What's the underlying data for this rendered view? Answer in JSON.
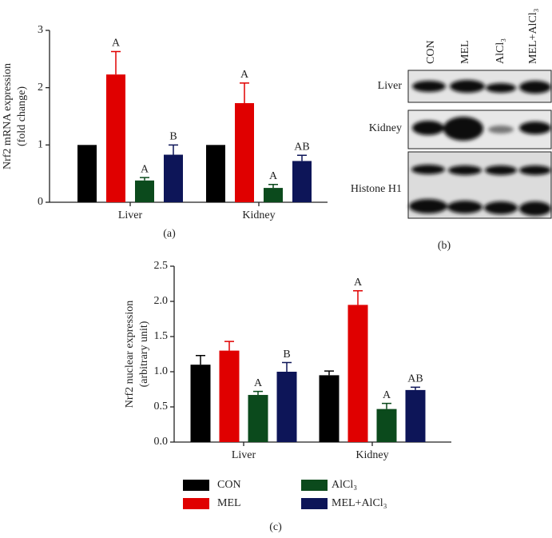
{
  "chart_data": [
    {
      "type": "bar",
      "caption": "(a)",
      "ylabel": [
        "Nrf2 mRNA expression",
        "(fold change)"
      ],
      "categories": [
        "Liver",
        "Kidney"
      ],
      "ylim": [
        0,
        3
      ],
      "yticks": [
        0,
        1,
        2,
        3
      ],
      "series": [
        {
          "color": "#000000",
          "values": [
            1,
            1
          ],
          "errors": [
            null,
            null
          ],
          "letters": [
            null,
            null
          ]
        },
        {
          "color": "#e00000",
          "values": [
            2.23,
            1.73
          ],
          "errors": [
            0.4,
            0.35
          ],
          "letters": [
            "A",
            "A"
          ]
        },
        {
          "color": "#0b4a1c",
          "values": [
            0.38,
            0.25
          ],
          "errors": [
            0.05,
            0.06
          ],
          "letters": [
            "A",
            "A"
          ]
        },
        {
          "color": "#0d1558",
          "values": [
            0.83,
            0.72
          ],
          "errors": [
            0.17,
            0.1
          ],
          "letters": [
            "B",
            "AB"
          ]
        }
      ]
    },
    {
      "type": "bar",
      "caption": "(c)",
      "ylabel": [
        "Nrf2 nuclear expression",
        "(arbitrary unit)"
      ],
      "categories": [
        "Liver",
        "Kidney"
      ],
      "ylim": [
        0,
        2.5
      ],
      "yticks": [
        {
          "value": 0,
          "label": "0.0"
        },
        {
          "value": 0.5,
          "label": "0.5"
        },
        {
          "value": 1,
          "label": "1.0"
        },
        {
          "value": 1.5,
          "label": "1.5"
        },
        {
          "value": 2,
          "label": "2.0"
        },
        {
          "value": 2.5,
          "label": "2.5"
        }
      ],
      "series": [
        {
          "name": "CON",
          "color": "#000000",
          "values": [
            1.1,
            0.95
          ],
          "errors": [
            0.13,
            0.06
          ],
          "letters": [
            null,
            null
          ]
        },
        {
          "name": "MEL",
          "color": "#e00000",
          "values": [
            1.3,
            1.95
          ],
          "errors": [
            0.13,
            0.2
          ],
          "letters": [
            null,
            "A"
          ]
        },
        {
          "name": "AlCl₃",
          "color": "#0b4a1c",
          "values": [
            0.67,
            0.47
          ],
          "errors": [
            0.05,
            0.08
          ],
          "letters": [
            "A",
            "A"
          ]
        },
        {
          "name": "MEL+AlCl₃",
          "color": "#0d1558",
          "values": [
            1.0,
            0.74
          ],
          "errors": [
            0.13,
            0.04
          ],
          "letters": [
            "B",
            "AB"
          ]
        }
      ]
    }
  ],
  "blot": {
    "caption": "(b)",
    "columns": [
      "CON",
      "MEL",
      "AlCl₃",
      "MEL+AlCl₃"
    ],
    "rows": [
      "Liver",
      "Kidney",
      "Histone H1"
    ]
  }
}
